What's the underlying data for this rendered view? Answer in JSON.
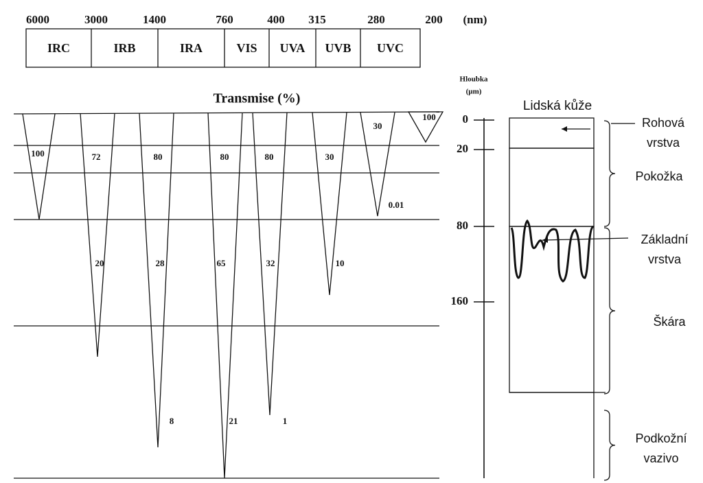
{
  "wavelengths": [
    6000,
    3000,
    1400,
    760,
    400,
    315,
    280,
    200
  ],
  "wavelength_unit": "(nm)",
  "bands": [
    "IRC",
    "IRB",
    "IRA",
    "VIS",
    "UVA",
    "UVB",
    "UVC"
  ],
  "title": "Transmise (%)",
  "transmission_labels": [
    100,
    72,
    20,
    80,
    28,
    8,
    80,
    65,
    21,
    80,
    32,
    1,
    30,
    10,
    30,
    0.01,
    100
  ],
  "depth_axis": {
    "title": "Hloubka",
    "unit": "(µm)",
    "ticks": [
      0,
      20,
      80,
      160
    ]
  },
  "skin_title": "Lidská kůže",
  "layers": [
    {
      "lines": [
        "Rohová",
        "vrstva"
      ]
    },
    {
      "lines": [
        "Pokožka"
      ]
    },
    {
      "lines": [
        "Základní",
        "vrstva"
      ]
    },
    {
      "lines": [
        "Škára"
      ]
    },
    {
      "lines": [
        "Podkožní",
        "vazivo"
      ]
    }
  ]
}
